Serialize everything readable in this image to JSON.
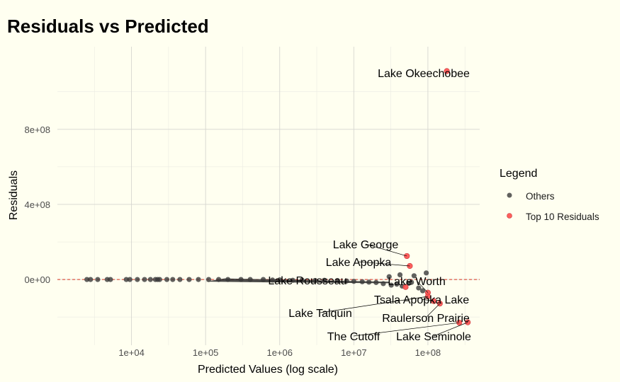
{
  "chart_data": {
    "type": "scatter",
    "title": "Residuals vs Predicted",
    "xlabel": "Predicted Values (log scale)",
    "ylabel": "Residuals",
    "x_scale": "log10",
    "xlim": [
      1000,
      500000000
    ],
    "ylim": [
      -350000000,
      1240000000
    ],
    "x_ticks": [
      10000,
      100000,
      1000000,
      10000000,
      100000000
    ],
    "x_tick_labels": [
      "1e+04",
      "1e+05",
      "1e+06",
      "1e+07",
      "1e+08"
    ],
    "y_ticks": [
      0,
      400000000,
      800000000
    ],
    "y_tick_labels": [
      "0e+00",
      "4e+08",
      "8e+08"
    ],
    "reference_line": {
      "y": 0,
      "color": "#d7301f",
      "style": "dashed"
    },
    "grid": true,
    "legend": {
      "title": "Legend",
      "position": "right",
      "entries": [
        {
          "label": "Others",
          "color": "#3a3a3a"
        },
        {
          "label": "Top 10 Residuals",
          "color": "#ff4d4d"
        }
      ]
    },
    "series": [
      {
        "name": "Top 10 Residuals",
        "color": "#ff4d4d",
        "points": [
          {
            "label": "Lake Okeechobee",
            "x": 180000000,
            "y": 1110000000
          },
          {
            "label": "Lake George",
            "x": 52000000,
            "y": 125000000
          },
          {
            "label": "Lake Apopka",
            "x": 57000000,
            "y": 72000000
          },
          {
            "label": "Lake Rousseau",
            "x": 50000000,
            "y": -40000000
          },
          {
            "label": "Lake Worth",
            "x": 100000000,
            "y": -70000000
          },
          {
            "label": "Tsala Apopka Lake",
            "x": 120000000,
            "y": -115000000
          },
          {
            "label": "Lake Talquin",
            "x": 100000000,
            "y": -90000000
          },
          {
            "label": "Raulerson Prairie",
            "x": 145000000,
            "y": -128000000
          },
          {
            "label": "The Cutoff",
            "x": 265000000,
            "y": -230000000
          },
          {
            "label": "Lake Seminole",
            "x": 345000000,
            "y": -228000000
          }
        ]
      },
      {
        "name": "Others",
        "color": "#3a3a3a",
        "points": [
          {
            "x": 2500,
            "y": 0
          },
          {
            "x": 2800,
            "y": 0
          },
          {
            "x": 3500,
            "y": 0
          },
          {
            "x": 4700,
            "y": 0
          },
          {
            "x": 5200,
            "y": 0
          },
          {
            "x": 8500,
            "y": 0
          },
          {
            "x": 9500,
            "y": 0
          },
          {
            "x": 12000,
            "y": 0
          },
          {
            "x": 15000,
            "y": 0
          },
          {
            "x": 18000,
            "y": 0
          },
          {
            "x": 21000,
            "y": 0
          },
          {
            "x": 22500,
            "y": 0
          },
          {
            "x": 24000,
            "y": 0
          },
          {
            "x": 30000,
            "y": 0
          },
          {
            "x": 36000,
            "y": 0
          },
          {
            "x": 45000,
            "y": 0
          },
          {
            "x": 60000,
            "y": 0
          },
          {
            "x": 80000,
            "y": 0
          },
          {
            "x": 110000,
            "y": 0
          },
          {
            "x": 150000,
            "y": 0
          },
          {
            "x": 200000,
            "y": 0
          },
          {
            "x": 300000,
            "y": 0
          },
          {
            "x": 400000,
            "y": 0
          },
          {
            "x": 600000,
            "y": 0
          },
          {
            "x": 800000,
            "y": -3000000
          },
          {
            "x": 1000000,
            "y": -2000000
          },
          {
            "x": 1500000,
            "y": -4000000
          },
          {
            "x": 2000000,
            "y": -3000000
          },
          {
            "x": 3000000,
            "y": -5000000
          },
          {
            "x": 4000000,
            "y": -4000000
          },
          {
            "x": 6000000,
            "y": -6000000
          },
          {
            "x": 8000000,
            "y": -8000000
          },
          {
            "x": 10000000,
            "y": -10000000
          },
          {
            "x": 13000000,
            "y": -12000000
          },
          {
            "x": 16000000,
            "y": -14000000
          },
          {
            "x": 20000000,
            "y": -16000000
          },
          {
            "x": 25000000,
            "y": -22000000
          },
          {
            "x": 30000000,
            "y": 15000000
          },
          {
            "x": 32000000,
            "y": -30000000
          },
          {
            "x": 38000000,
            "y": -25000000
          },
          {
            "x": 42000000,
            "y": 25000000
          },
          {
            "x": 45000000,
            "y": -35000000
          },
          {
            "x": 55000000,
            "y": -20000000
          },
          {
            "x": 60000000,
            "y": -15000000
          },
          {
            "x": 65000000,
            "y": 20000000
          },
          {
            "x": 75000000,
            "y": -45000000
          },
          {
            "x": 85000000,
            "y": -60000000
          },
          {
            "x": 95000000,
            "y": 35000000
          }
        ]
      }
    ]
  }
}
